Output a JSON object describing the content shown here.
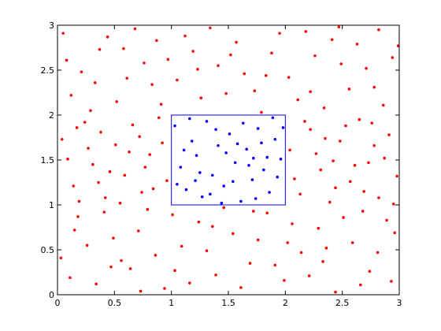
{
  "chart_data": {
    "type": "scatter",
    "xlim": [
      0,
      3
    ],
    "ylim": [
      0,
      3
    ],
    "xticks": [
      0,
      0.5,
      1,
      1.5,
      2,
      2.5,
      3
    ],
    "yticks": [
      0,
      0.5,
      1,
      1.5,
      2,
      2.5,
      3
    ],
    "box": {
      "x": [
        1,
        2
      ],
      "y": [
        1,
        2
      ],
      "color": "#0000ff"
    },
    "series": [
      {
        "color": "#ff0000",
        "x": [
          0.05,
          0.21,
          0.37,
          0.52,
          0.68,
          0.83,
          0.97,
          1.12,
          1.26,
          1.41,
          1.57,
          1.73,
          1.88,
          2.03,
          2.18,
          2.34,
          2.49,
          2.63,
          2.78,
          2.94,
          0.12,
          0.29,
          0.44,
          0.61,
          0.76,
          0.91,
          1.05,
          1.19,
          1.34,
          1.48,
          1.64,
          1.79,
          1.95,
          2.11,
          2.26,
          2.41,
          2.56,
          2.71,
          2.86,
          2.99,
          0.08,
          0.33,
          0.58,
          0.87,
          1.23,
          1.52,
          1.83,
          2.22,
          2.47,
          2.82,
          0.03,
          0.18,
          0.34,
          0.49,
          0.64,
          0.79,
          0.94,
          1.09,
          1.24,
          1.39,
          1.54,
          1.69,
          1.84,
          1.99,
          2.14,
          2.29,
          2.44,
          2.59,
          2.74,
          2.89,
          0.11,
          0.26,
          0.41,
          0.56,
          0.71,
          0.86,
          1.01,
          1.16,
          1.31,
          1.46,
          1.61,
          1.76,
          1.91,
          2.06,
          2.21,
          2.36,
          2.51,
          2.66,
          2.81,
          2.96,
          0.15,
          0.47,
          0.73,
          1.03,
          1.36,
          1.72,
          2.02,
          2.33,
          2.68,
          2.93,
          0.04,
          0.14,
          0.24,
          0.31,
          0.42,
          0.51,
          0.59,
          0.66,
          0.74,
          0.81,
          0.89,
          0.96,
          0.09,
          0.19,
          0.27,
          0.38,
          0.46,
          0.55,
          0.63,
          0.72,
          0.84,
          0.92,
          0.17,
          0.36,
          0.77,
          2.04,
          2.13,
          2.22,
          2.31,
          2.39,
          2.48,
          2.57,
          2.65,
          2.73,
          2.82,
          2.91,
          2.98,
          2.08,
          2.17,
          2.27,
          2.35,
          2.44,
          2.53,
          2.61,
          2.69,
          2.78,
          2.87,
          2.95,
          2.42,
          2.76
        ],
        "values": [
          2.91,
          2.48,
          2.73,
          2.15,
          2.96,
          2.34,
          2.62,
          2.88,
          2.19,
          2.55,
          2.81,
          2.27,
          2.69,
          2.42,
          2.93,
          2.08,
          2.57,
          2.79,
          2.31,
          2.64,
          2.22,
          2.05,
          2.87,
          2.41,
          2.58,
          2.12,
          2.39,
          2.71,
          2.97,
          2.24,
          2.46,
          2.03,
          2.91,
          2.17,
          2.66,
          2.84,
          2.29,
          2.52,
          2.11,
          2.77,
          2.61,
          2.36,
          2.74,
          2.83,
          2.51,
          2.67,
          2.44,
          2.26,
          2.98,
          2.95,
          0.41,
          0.87,
          0.12,
          0.63,
          0.29,
          0.95,
          0.07,
          0.54,
          0.81,
          0.22,
          0.68,
          0.35,
          0.91,
          0.16,
          0.47,
          0.74,
          0.03,
          0.58,
          0.26,
          0.83,
          0.19,
          0.55,
          0.92,
          0.38,
          0.71,
          0.44,
          0.89,
          0.13,
          0.49,
          0.97,
          0.08,
          0.61,
          0.33,
          0.79,
          0.21,
          0.52,
          0.86,
          0.11,
          0.47,
          0.69,
          0.72,
          0.31,
          0.04,
          0.27,
          0.76,
          0.93,
          0.58,
          0.37,
          0.93,
          0.15,
          1.73,
          1.21,
          1.92,
          1.45,
          1.08,
          1.67,
          1.33,
          1.89,
          1.14,
          1.56,
          1.97,
          1.27,
          1.51,
          1.04,
          1.63,
          1.81,
          1.37,
          1.02,
          1.59,
          1.76,
          1.18,
          1.69,
          1.86,
          1.25,
          1.42,
          1.61,
          1.12,
          1.84,
          1.39,
          1.03,
          1.71,
          1.26,
          1.95,
          1.47,
          1.08,
          1.78,
          1.32,
          1.29,
          1.93,
          1.57,
          1.74,
          1.19,
          1.88,
          1.44,
          1.15,
          1.66,
          1.52,
          1.01,
          1.49,
          1.91
        ]
      },
      {
        "color": "#0000ff",
        "x": [
          1.03,
          1.08,
          1.13,
          1.18,
          1.22,
          1.27,
          1.31,
          1.36,
          1.41,
          1.46,
          1.51,
          1.56,
          1.61,
          1.66,
          1.71,
          1.76,
          1.81,
          1.86,
          1.91,
          1.96,
          1.05,
          1.11,
          1.16,
          1.25,
          1.34,
          1.39,
          1.48,
          1.54,
          1.63,
          1.68,
          1.74,
          1.79,
          1.84,
          1.93,
          1.98,
          1.21,
          1.44,
          1.58,
          1.72,
          1.89
        ],
        "values": [
          1.88,
          1.42,
          1.17,
          1.71,
          1.55,
          1.09,
          1.93,
          1.33,
          1.66,
          1.21,
          1.79,
          1.47,
          1.04,
          1.62,
          1.28,
          1.85,
          1.39,
          1.14,
          1.73,
          1.51,
          1.23,
          1.61,
          1.96,
          1.36,
          1.12,
          1.84,
          1.58,
          1.26,
          1.91,
          1.44,
          1.07,
          1.69,
          1.53,
          1.31,
          1.86,
          1.27,
          1.02,
          1.68,
          1.52,
          1.97
        ]
      }
    ]
  }
}
